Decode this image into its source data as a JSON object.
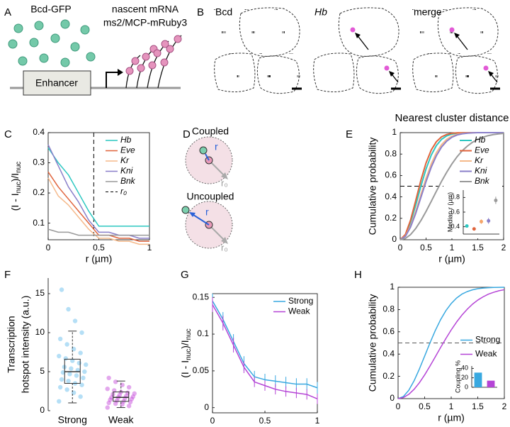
{
  "panels": {
    "A": {
      "letter": "A",
      "protein": "Bcd-GFP",
      "transcript": "nascent mRNA",
      "reporter": "ms2/MCP-mRuby3",
      "enhancer": "Enhancer"
    },
    "B": {
      "letter": "B",
      "channels": [
        "Bcd",
        "Hb",
        "merge"
      ]
    },
    "D": {
      "letter": "D",
      "states": [
        "Coupled",
        "Uncoupled"
      ],
      "distance": "r",
      "radius": "r₀"
    }
  },
  "chart_data": [
    {
      "panel": "C",
      "type": "line",
      "xlabel": "r (µm)",
      "ylabel": [
        {
          "text": "(I - I"
        },
        {
          "text": "nuc",
          "sub": true
        },
        {
          "text": ")/I"
        },
        {
          "text": "nuc",
          "sub": true
        }
      ],
      "x": [
        0,
        0.1,
        0.2,
        0.3,
        0.4,
        0.5,
        0.6,
        0.7,
        0.8,
        0.9,
        1
      ],
      "series": [
        {
          "name": "Hb",
          "color": "#2cc7c1",
          "values": [
            0.35,
            0.3,
            0.26,
            0.2,
            0.14,
            0.09,
            0.09,
            0.09,
            0.09,
            0.09,
            0.09
          ]
        },
        {
          "name": "Eve",
          "color": "#e0643c",
          "values": [
            0.27,
            0.22,
            0.18,
            0.14,
            0.1,
            0.06,
            0.06,
            0.05,
            0.05,
            0.04,
            0.04
          ]
        },
        {
          "name": "Kr",
          "color": "#f5b98a",
          "values": [
            0.25,
            0.19,
            0.16,
            0.12,
            0.08,
            0.05,
            0.05,
            0.04,
            0.04,
            0.03,
            0.03
          ]
        },
        {
          "name": "Kni",
          "color": "#8a7fc9",
          "values": [
            0.36,
            0.29,
            0.22,
            0.17,
            0.11,
            0.07,
            0.07,
            0.06,
            0.06,
            0.05,
            0.05
          ]
        },
        {
          "name": "Bnk",
          "color": "#9a9a9a",
          "values": [
            0.08,
            0.07,
            0.07,
            0.06,
            0.06,
            0.06,
            0.06,
            0.06,
            0.06,
            0.06,
            0.06
          ]
        }
      ],
      "reference_lines": [
        {
          "name": "r₀",
          "x": 0.45,
          "color": "#000000"
        }
      ],
      "xlim": [
        0,
        1
      ],
      "xticks": [
        0,
        0.5,
        1
      ],
      "ylim": [
        0.045,
        0.4
      ],
      "yticks": [
        0.1,
        0.2,
        0.3,
        0.4
      ],
      "legend": "upper right",
      "legend_font_style": "italic"
    },
    {
      "panel": "E",
      "type": "line",
      "title": "Nearest cluster distance",
      "xlabel": "r (µm)",
      "ylabel": "Cumulative probability",
      "x": [
        0,
        0.1,
        0.2,
        0.3,
        0.4,
        0.5,
        0.6,
        0.7,
        0.8,
        0.9,
        1,
        1.1,
        1.2,
        1.3,
        1.4,
        1.5,
        1.6,
        1.7,
        1.8,
        1.9,
        2
      ],
      "series": [
        {
          "name": "Hb",
          "color": "#2cc7c1",
          "values": [
            0,
            0.042,
            0.159,
            0.323,
            0.5,
            0.661,
            0.79,
            0.88,
            0.938,
            0.97,
            0.987,
            0.995,
            0.998,
            0.999,
            1,
            1,
            1,
            1,
            1,
            1,
            1
          ]
        },
        {
          "name": "Eve",
          "color": "#e0643c",
          "values": [
            0,
            0.049,
            0.183,
            0.366,
            0.555,
            0.718,
            0.838,
            0.916,
            0.961,
            0.983,
            0.994,
            0.998,
            0.999,
            1,
            1,
            1,
            1,
            1,
            1,
            1,
            1
          ]
        },
        {
          "name": "Kr",
          "color": "#f5b98a",
          "values": [
            0,
            0.034,
            0.128,
            0.265,
            0.422,
            0.575,
            0.708,
            0.813,
            0.888,
            0.938,
            0.967,
            0.984,
            0.993,
            0.997,
            0.999,
            1,
            1,
            1,
            1,
            1,
            1
          ]
        },
        {
          "name": "Kni",
          "color": "#8a7fc9",
          "values": [
            0,
            0.031,
            0.118,
            0.246,
            0.395,
            0.544,
            0.677,
            0.785,
            0.866,
            0.921,
            0.957,
            0.978,
            0.989,
            0.995,
            0.998,
            1,
            1,
            1,
            1,
            1,
            1
          ]
        },
        {
          "name": "Bnk",
          "color": "#9a9a9a",
          "values": [
            0,
            0.012,
            0.048,
            0.105,
            0.179,
            0.265,
            0.358,
            0.453,
            0.546,
            0.631,
            0.708,
            0.775,
            0.831,
            0.875,
            0.911,
            0.938,
            0.957,
            0.972,
            0.982,
            0.988,
            0.993
          ]
        }
      ],
      "reference_lines": [
        {
          "y": 0.5,
          "color": "#000000"
        }
      ],
      "xlim": [
        0,
        2
      ],
      "xticks": [
        0,
        0.5,
        1,
        1.5,
        2
      ],
      "ylim": [
        0,
        1
      ],
      "yticks": [
        0,
        0.2,
        0.4,
        0.6,
        0.8,
        1
      ],
      "legend": "upper right",
      "legend_font_style": "italic"
    },
    {
      "type": "scatter",
      "ylabel": "Median r (µm)",
      "categories": [
        null,
        null,
        null,
        null,
        null
      ],
      "values": [
        0.41,
        0.37,
        0.47,
        0.48,
        0.76
      ],
      "errors": [
        0.02,
        0.02,
        0.03,
        0.04,
        0.05
      ],
      "colors": [
        "#2cc7c1",
        "#e0643c",
        "#f5a56a",
        "#8a7fc9",
        "#9a9a9a"
      ],
      "ylim": [
        0.3,
        0.9
      ],
      "yticks": [
        0.4,
        0.6,
        0.8
      ]
    },
    {
      "panel": "F",
      "type": "box",
      "ylabel": [
        "Transcription",
        "hotspot intensity (a.u.)"
      ],
      "categories": [
        "Strong",
        "Weak"
      ],
      "boxes": [
        {
          "color": "#5bb8ea",
          "whislo": 1,
          "q1": 3.5,
          "med": 5,
          "q3": 6.6,
          "whishi": 10.2,
          "points": [
            1.2,
            1.8,
            2.3,
            2.7,
            3,
            3.3,
            3.5,
            3.8,
            4,
            4.2,
            4.5,
            4.7,
            4.9,
            5,
            5.2,
            5.4,
            5.6,
            5.9,
            6.1,
            6.4,
            6.7,
            7,
            7.4,
            7.9,
            8.5,
            9.2,
            10,
            11.5,
            13,
            15.5
          ]
        },
        {
          "color": "#c23ed8",
          "whislo": 0.4,
          "q1": 1.2,
          "med": 1.7,
          "q3": 2.4,
          "whishi": 3.8,
          "points": [
            0.4,
            0.6,
            0.8,
            0.9,
            1,
            1.1,
            1.2,
            1.3,
            1.4,
            1.5,
            1.6,
            1.7,
            1.7,
            1.8,
            1.9,
            2,
            2.1,
            2.2,
            2.3,
            2.4,
            2.6,
            2.8,
            3,
            3.3,
            3.7,
            4.2
          ]
        }
      ],
      "ylim": [
        0,
        17
      ],
      "yticks": [
        0,
        5,
        10,
        15
      ]
    },
    {
      "panel": "G",
      "type": "line",
      "ylabel": [
        {
          "text": "(I - I"
        },
        {
          "text": "nuc",
          "sub": true
        },
        {
          "text": ")/I"
        },
        {
          "text": "nuc",
          "sub": true
        }
      ],
      "x": [
        0,
        0.1,
        0.2,
        0.3,
        0.4,
        0.5,
        0.6,
        0.7,
        0.8,
        0.9,
        1
      ],
      "series": [
        {
          "name": "Strong",
          "color": "#38a8e0",
          "values": [
            0.145,
            0.12,
            0.09,
            0.06,
            0.042,
            0.038,
            0.036,
            0.034,
            0.032,
            0.032,
            0.027
          ],
          "errors": [
            0.01,
            0.01,
            0.01,
            0.01,
            0.008,
            0.008,
            0.008,
            0.008,
            0.008,
            0.008,
            0.008
          ]
        },
        {
          "name": "Weak",
          "color": "#b544d6",
          "values": [
            0.14,
            0.115,
            0.085,
            0.055,
            0.035,
            0.03,
            0.025,
            0.022,
            0.02,
            0.018,
            0.012
          ],
          "errors": [
            0.01,
            0.01,
            0.01,
            0.008,
            0.007,
            0.007,
            0.007,
            0.007,
            0.007,
            0.007,
            0.007
          ]
        }
      ],
      "xlim": [
        0,
        1
      ],
      "xticks": [
        0,
        0.5,
        1
      ],
      "ylim": [
        -0.007,
        0.155
      ],
      "yticks": [
        0,
        0.05,
        0.1,
        0.15
      ],
      "legend": "upper right"
    },
    {
      "panel": "H",
      "type": "line",
      "xlabel": "r (µm)",
      "ylabel": "Cumulative probability",
      "x": [
        0,
        0.1,
        0.2,
        0.3,
        0.4,
        0.5,
        0.6,
        0.7,
        0.8,
        0.9,
        1,
        1.1,
        1.2,
        1.3,
        1.4,
        1.5,
        1.6,
        1.7,
        1.8,
        1.9,
        2
      ],
      "series": [
        {
          "name": "Strong",
          "color": "#38a8e0",
          "values": [
            0,
            0.019,
            0.074,
            0.159,
            0.265,
            0.382,
            0.5,
            0.611,
            0.709,
            0.79,
            0.854,
            0.903,
            0.938,
            0.961,
            0.977,
            0.987,
            0.993,
            0.996,
            0.998,
            0.999,
            1
          ]
        },
        {
          "name": "Weak",
          "color": "#b544d6",
          "values": [
            0,
            0.01,
            0.038,
            0.083,
            0.142,
            0.213,
            0.292,
            0.375,
            0.459,
            0.54,
            0.617,
            0.687,
            0.749,
            0.802,
            0.848,
            0.885,
            0.914,
            0.938,
            0.955,
            0.969,
            0.978
          ]
        }
      ],
      "reference_lines": [
        {
          "y": 0.5,
          "color": "#555555"
        }
      ],
      "xlim": [
        0,
        2
      ],
      "xticks": [
        0,
        0.5,
        1,
        1.5,
        2
      ],
      "ylim": [
        0,
        1
      ],
      "yticks": [
        0,
        0.2,
        0.4,
        0.6,
        0.8,
        1
      ],
      "legend": "right"
    },
    {
      "type": "bar",
      "ylabel": "Coupling %",
      "categories": [
        null,
        null
      ],
      "values": [
        31,
        14
      ],
      "colors": [
        "#38a8e0",
        "#b544d6"
      ],
      "ylim": [
        0,
        45
      ],
      "yticks": [
        0,
        20,
        40
      ]
    }
  ]
}
